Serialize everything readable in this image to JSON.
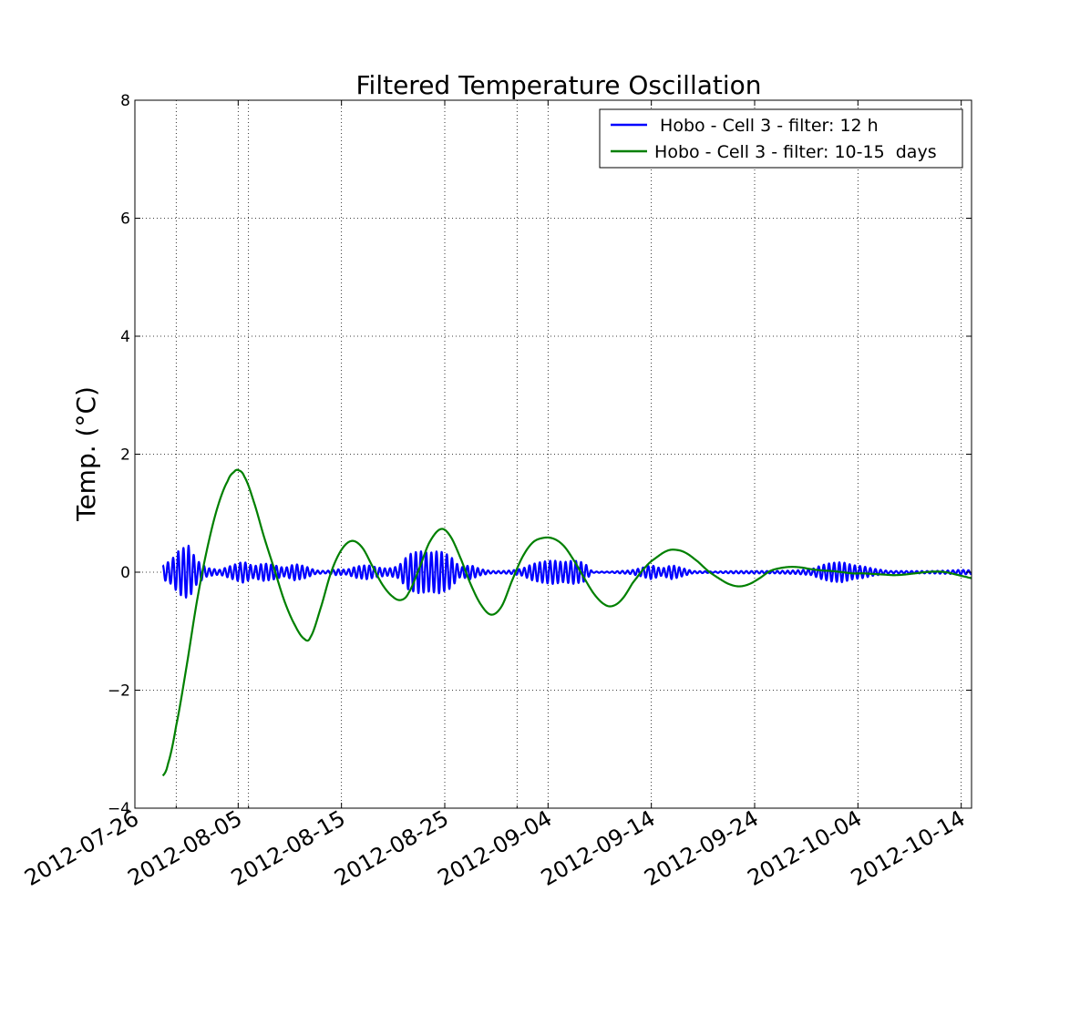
{
  "chart_data": {
    "type": "line",
    "title": "Filtered Temperature Oscillation",
    "xlabel": "",
    "ylabel": "Temp. (°C)",
    "ylim": [
      -4,
      8
    ],
    "xlim_days": [
      0,
      81
    ],
    "x_origin_date": "2012-07-26",
    "y_ticks": [
      {
        "value": 8,
        "label": "8"
      },
      {
        "value": 6,
        "label": "6"
      },
      {
        "value": 4,
        "label": "4"
      },
      {
        "value": 2,
        "label": "2"
      },
      {
        "value": 0,
        "label": "0"
      },
      {
        "value": -2,
        "label": "−2"
      },
      {
        "value": -4,
        "label": "−4"
      }
    ],
    "x_ticks": [
      {
        "day": 0,
        "label": "2012-07-26"
      },
      {
        "day": 10,
        "label": "2012-08-05"
      },
      {
        "day": 20,
        "label": "2012-08-15"
      },
      {
        "day": 30,
        "label": "2012-08-25"
      },
      {
        "day": 40,
        "label": "2012-09-04"
      },
      {
        "day": 50,
        "label": "2012-09-14"
      },
      {
        "day": 60,
        "label": "2012-09-24"
      },
      {
        "day": 70,
        "label": "2012-10-04"
      },
      {
        "day": 80,
        "label": "2012-10-14"
      }
    ],
    "minor_x_grid_days": [
      4,
      11,
      37
    ],
    "grid": true,
    "legend_position": "top-right",
    "series": [
      {
        "name": " Hobo - Cell 3 - filter: 12 h",
        "color": "#0000ff",
        "kind": "tidal",
        "x_start_day": 2.7,
        "x_end_day": 81,
        "period_days": 0.5,
        "envelope_points": [
          [
            2.7,
            0.12
          ],
          [
            3.5,
            0.2
          ],
          [
            4.3,
            0.38
          ],
          [
            5.2,
            0.45
          ],
          [
            6.0,
            0.2
          ],
          [
            7.0,
            0.07
          ],
          [
            8.2,
            0.04
          ],
          [
            9.5,
            0.12
          ],
          [
            10.5,
            0.18
          ],
          [
            11.5,
            0.1
          ],
          [
            12.5,
            0.15
          ],
          [
            13.5,
            0.12
          ],
          [
            14.5,
            0.07
          ],
          [
            15.5,
            0.14
          ],
          [
            16.5,
            0.1
          ],
          [
            17.5,
            0.03
          ],
          [
            18.5,
            0.02
          ],
          [
            19.5,
            0.05
          ],
          [
            20.5,
            0.04
          ],
          [
            21.5,
            0.1
          ],
          [
            22.5,
            0.12
          ],
          [
            23.5,
            0.08
          ],
          [
            24.5,
            0.06
          ],
          [
            25.5,
            0.1
          ],
          [
            26.5,
            0.3
          ],
          [
            27.5,
            0.36
          ],
          [
            28.5,
            0.33
          ],
          [
            29.5,
            0.36
          ],
          [
            30.5,
            0.28
          ],
          [
            31.5,
            0.08
          ],
          [
            32.5,
            0.12
          ],
          [
            33.5,
            0.05
          ],
          [
            34.5,
            0.02
          ],
          [
            35.5,
            0.02
          ],
          [
            36.5,
            0.03
          ],
          [
            37.5,
            0.06
          ],
          [
            38.5,
            0.14
          ],
          [
            39.5,
            0.18
          ],
          [
            40.5,
            0.2
          ],
          [
            41.5,
            0.17
          ],
          [
            42.5,
            0.2
          ],
          [
            43.5,
            0.16
          ],
          [
            44.3,
            0.01
          ],
          [
            46,
            0.01
          ],
          [
            48,
            0.03
          ],
          [
            49,
            0.07
          ],
          [
            50,
            0.12
          ],
          [
            51,
            0.06
          ],
          [
            52,
            0.12
          ],
          [
            53,
            0.07
          ],
          [
            54,
            0.02
          ],
          [
            56,
            0.01
          ],
          [
            58,
            0.02
          ],
          [
            60,
            0.02
          ],
          [
            62,
            0.02
          ],
          [
            64,
            0.03
          ],
          [
            65.5,
            0.05
          ],
          [
            66.5,
            0.12
          ],
          [
            67.5,
            0.16
          ],
          [
            68.5,
            0.17
          ],
          [
            69.5,
            0.12
          ],
          [
            70.5,
            0.1
          ],
          [
            71.5,
            0.06
          ],
          [
            73,
            0.02
          ],
          [
            75,
            0.02
          ],
          [
            77,
            0.02
          ],
          [
            79,
            0.03
          ],
          [
            80,
            0.04
          ],
          [
            81,
            0.03
          ]
        ]
      },
      {
        "name": " Hobo - Cell 3 - filter: 10-15  days",
        "color": "#008000",
        "kind": "smooth",
        "points": [
          [
            2.7,
            -3.45
          ],
          [
            3.2,
            -3.25
          ],
          [
            4.0,
            -2.6
          ],
          [
            5.0,
            -1.6
          ],
          [
            6.0,
            -0.5
          ],
          [
            7.0,
            0.4
          ],
          [
            8.0,
            1.1
          ],
          [
            9.0,
            1.55
          ],
          [
            9.6,
            1.7
          ],
          [
            10.0,
            1.73
          ],
          [
            10.6,
            1.62
          ],
          [
            11.5,
            1.2
          ],
          [
            12.5,
            0.6
          ],
          [
            13.5,
            0.05
          ],
          [
            14.5,
            -0.5
          ],
          [
            15.5,
            -0.9
          ],
          [
            16.4,
            -1.13
          ],
          [
            17.0,
            -1.1
          ],
          [
            18.0,
            -0.6
          ],
          [
            19.0,
            0.0
          ],
          [
            20.0,
            0.38
          ],
          [
            21.0,
            0.53
          ],
          [
            22.0,
            0.42
          ],
          [
            23.0,
            0.1
          ],
          [
            24.0,
            -0.22
          ],
          [
            25.0,
            -0.42
          ],
          [
            25.8,
            -0.47
          ],
          [
            26.5,
            -0.35
          ],
          [
            27.5,
            0.05
          ],
          [
            28.5,
            0.5
          ],
          [
            29.6,
            0.73
          ],
          [
            30.5,
            0.62
          ],
          [
            31.5,
            0.25
          ],
          [
            32.5,
            -0.2
          ],
          [
            33.5,
            -0.55
          ],
          [
            34.5,
            -0.72
          ],
          [
            35.5,
            -0.58
          ],
          [
            36.5,
            -0.15
          ],
          [
            37.5,
            0.25
          ],
          [
            38.5,
            0.5
          ],
          [
            39.5,
            0.58
          ],
          [
            40.5,
            0.57
          ],
          [
            41.5,
            0.45
          ],
          [
            42.5,
            0.2
          ],
          [
            43.5,
            -0.1
          ],
          [
            44.5,
            -0.38
          ],
          [
            45.5,
            -0.55
          ],
          [
            46.3,
            -0.57
          ],
          [
            47.2,
            -0.45
          ],
          [
            48.2,
            -0.18
          ],
          [
            49.5,
            0.1
          ],
          [
            50.5,
            0.25
          ],
          [
            51.5,
            0.36
          ],
          [
            52.3,
            0.38
          ],
          [
            53.3,
            0.33
          ],
          [
            54.5,
            0.18
          ],
          [
            55.5,
            0.02
          ],
          [
            56.5,
            -0.1
          ],
          [
            57.5,
            -0.2
          ],
          [
            58.5,
            -0.24
          ],
          [
            59.5,
            -0.2
          ],
          [
            60.5,
            -0.1
          ],
          [
            61.5,
            0.02
          ],
          [
            62.5,
            0.07
          ],
          [
            63.5,
            0.09
          ],
          [
            64.5,
            0.08
          ],
          [
            65.5,
            0.05
          ],
          [
            66.5,
            0.03
          ],
          [
            67.5,
            0.02
          ],
          [
            68.5,
            0.0
          ],
          [
            69.5,
            -0.02
          ],
          [
            70.5,
            -0.02
          ],
          [
            71.5,
            -0.03
          ],
          [
            72.5,
            -0.04
          ],
          [
            73.5,
            -0.05
          ],
          [
            74.5,
            -0.04
          ],
          [
            75.5,
            -0.02
          ],
          [
            76.5,
            0.0
          ],
          [
            77.5,
            0.01
          ],
          [
            78.5,
            0.0
          ],
          [
            79.5,
            -0.04
          ],
          [
            80.5,
            -0.08
          ],
          [
            81.0,
            -0.1
          ]
        ]
      }
    ]
  }
}
